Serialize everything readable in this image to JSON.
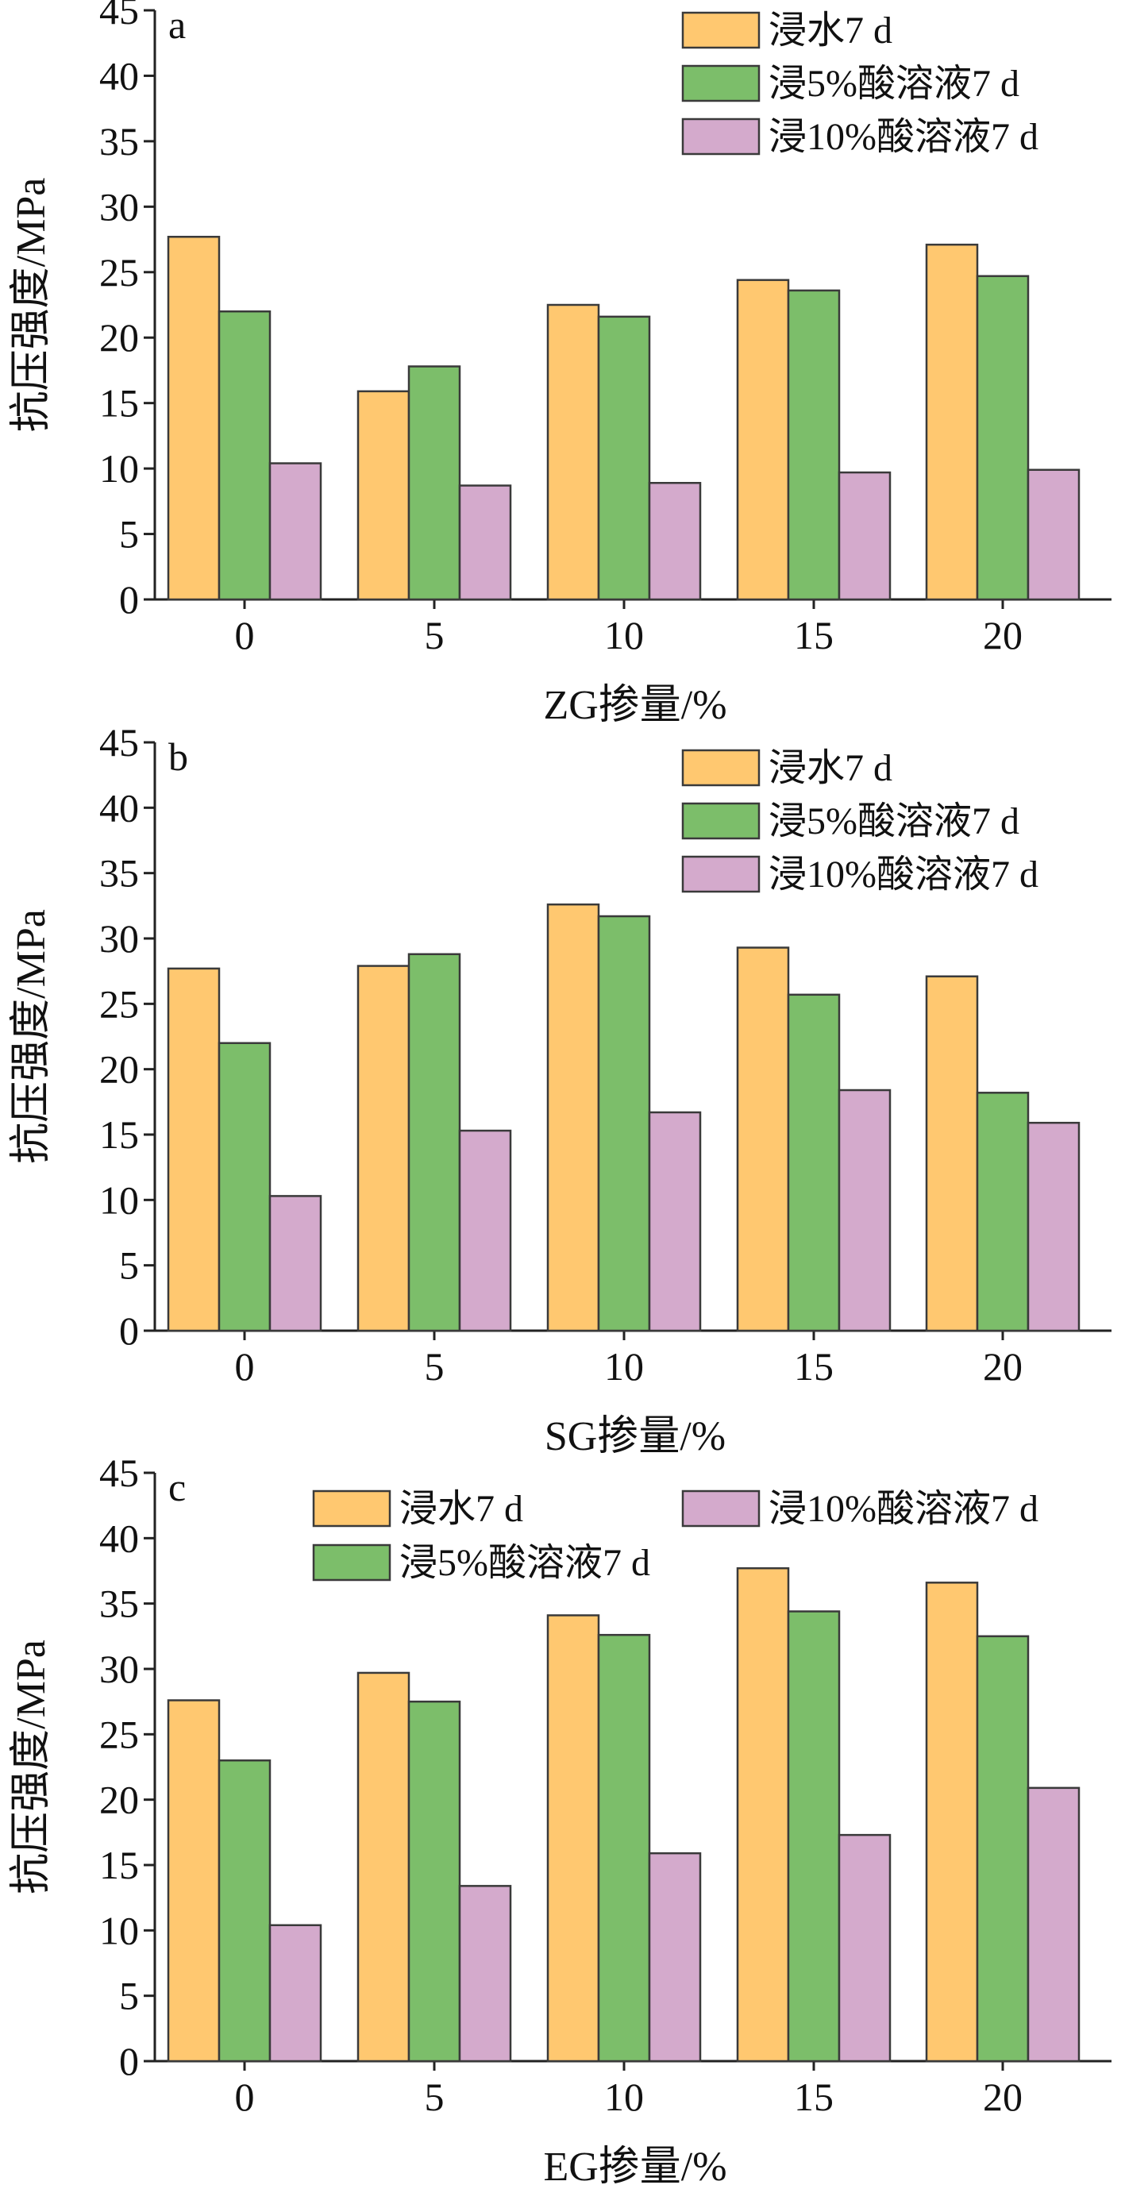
{
  "chart_data": [
    {
      "type": "bar",
      "panel_label": "a",
      "categories": [
        "0",
        "5",
        "10",
        "15",
        "20"
      ],
      "series": [
        {
          "name": "浸水7 d",
          "color": "#FFC870",
          "values": [
            27.7,
            15.9,
            22.5,
            24.4,
            27.1
          ]
        },
        {
          "name": "浸5%酸溶液7 d",
          "color": "#7CBE6A",
          "values": [
            22.0,
            17.8,
            21.6,
            23.6,
            24.7
          ]
        },
        {
          "name": "浸10%酸溶液7 d",
          "color": "#D4AACC",
          "values": [
            10.4,
            8.7,
            8.9,
            9.7,
            9.9
          ]
        }
      ],
      "xlabel": "ZG掺量/%",
      "ylabel": "抗压强度/MPa",
      "ylim": [
        0,
        45
      ],
      "yticks": [
        "0",
        "5",
        "10",
        "15",
        "20",
        "25",
        "30",
        "35",
        "40",
        "45"
      ],
      "legend_placement": "top-right"
    },
    {
      "type": "bar",
      "panel_label": "b",
      "categories": [
        "0",
        "5",
        "10",
        "15",
        "20"
      ],
      "series": [
        {
          "name": "浸水7 d",
          "color": "#FFC870",
          "values": [
            27.7,
            27.9,
            32.6,
            29.3,
            27.1
          ]
        },
        {
          "name": "浸5%酸溶液7 d",
          "color": "#7CBE6A",
          "values": [
            22.0,
            28.8,
            31.7,
            25.7,
            18.2
          ]
        },
        {
          "name": "浸10%酸溶液7 d",
          "color": "#D4AACC",
          "values": [
            10.3,
            15.3,
            16.7,
            18.4,
            15.9
          ]
        }
      ],
      "xlabel": "SG掺量/%",
      "ylabel": "抗压强度/MPa",
      "ylim": [
        0,
        45
      ],
      "yticks": [
        "0",
        "5",
        "10",
        "15",
        "20",
        "25",
        "30",
        "35",
        "40",
        "45"
      ],
      "legend_placement": "top-right"
    },
    {
      "type": "bar",
      "panel_label": "c",
      "categories": [
        "0",
        "5",
        "10",
        "15",
        "20"
      ],
      "series": [
        {
          "name": "浸水7 d",
          "color": "#FFC870",
          "values": [
            27.6,
            29.7,
            34.1,
            37.7,
            36.6
          ]
        },
        {
          "name": "浸5%酸溶液7 d",
          "color": "#7CBE6A",
          "values": [
            23.0,
            27.5,
            32.6,
            34.4,
            32.5
          ]
        },
        {
          "name": "浸10%酸溶液7 d",
          "color": "#D4AACC",
          "values": [
            10.4,
            13.4,
            15.9,
            17.3,
            20.9
          ]
        }
      ],
      "xlabel": "EG掺量/%",
      "ylabel": "抗压强度/MPa",
      "ylim": [
        0,
        45
      ],
      "yticks": [
        "0",
        "5",
        "10",
        "15",
        "20",
        "25",
        "30",
        "35",
        "40",
        "45"
      ],
      "legend_placement": "top"
    }
  ]
}
